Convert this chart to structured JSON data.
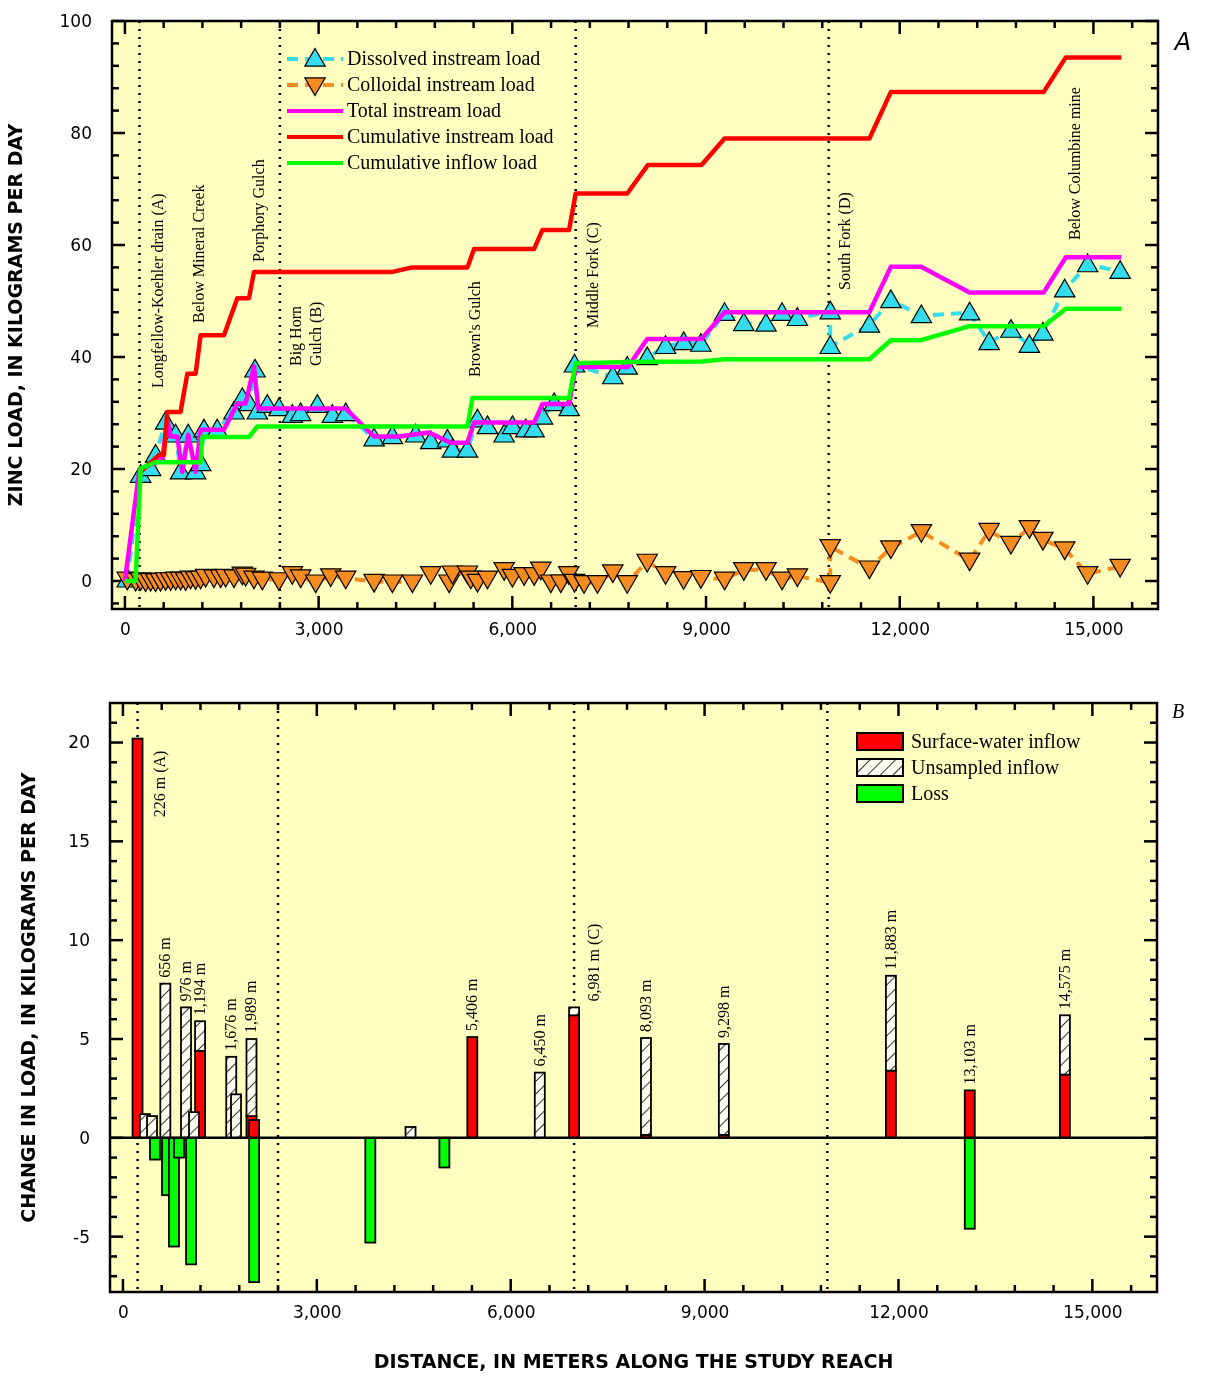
{
  "chart_data": [
    {
      "type": "line",
      "ylabel": "ZINC LOAD, IN KILOGRAMS PER DAY",
      "legend": "top left",
      "xlim": [
        -200,
        16000
      ],
      "ylim": [
        -5,
        100
      ],
      "xticks": [
        {
          "value": 0,
          "label": "0"
        },
        {
          "value": 600,
          "label": null
        },
        {
          "value": 1200,
          "label": null
        },
        {
          "value": 1800,
          "label": null
        },
        {
          "value": 2400,
          "label": null
        },
        {
          "value": 3000,
          "label": "3,000"
        },
        {
          "value": 3600,
          "label": null
        },
        {
          "value": 4200,
          "label": null
        },
        {
          "value": 4800,
          "label": null
        },
        {
          "value": 5400,
          "label": null
        },
        {
          "value": 6000,
          "label": "6,000"
        },
        {
          "value": 6600,
          "label": null
        },
        {
          "value": 7200,
          "label": null
        },
        {
          "value": 7800,
          "label": null
        },
        {
          "value": 8400,
          "label": null
        },
        {
          "value": 9000,
          "label": "9,000"
        },
        {
          "value": 9600,
          "label": null
        },
        {
          "value": 10200,
          "label": null
        },
        {
          "value": 10800,
          "label": null
        },
        {
          "value": 11400,
          "label": null
        },
        {
          "value": 12000,
          "label": "12,000"
        },
        {
          "value": 12600,
          "label": null
        },
        {
          "value": 13200,
          "label": null
        },
        {
          "value": 13800,
          "label": null
        },
        {
          "value": 14400,
          "label": null
        },
        {
          "value": 15000,
          "label": "15,000"
        },
        {
          "value": 15600,
          "label": null
        }
      ],
      "yticks": [
        {
          "value": -4,
          "label": null
        },
        0,
        {
          "value": 4,
          "label": null
        },
        {
          "value": 8,
          "label": null
        },
        {
          "value": 12,
          "label": null
        },
        {
          "value": 16,
          "label": null
        },
        20,
        {
          "value": 24,
          "label": null
        },
        {
          "value": 28,
          "label": null
        },
        {
          "value": 32,
          "label": null
        },
        {
          "value": 36,
          "label": null
        },
        40,
        {
          "value": 44,
          "label": null
        },
        {
          "value": 48,
          "label": null
        },
        {
          "value": 52,
          "label": null
        },
        {
          "value": 56,
          "label": null
        },
        60,
        {
          "value": 64,
          "label": null
        },
        {
          "value": 68,
          "label": null
        },
        {
          "value": 72,
          "label": null
        },
        {
          "value": 76,
          "label": null
        },
        80,
        {
          "value": 84,
          "label": null
        },
        {
          "value": 88,
          "label": null
        },
        {
          "value": 92,
          "label": null
        },
        {
          "value": 96,
          "label": null
        },
        100
      ],
      "ref_lines": [
        {
          "axis": "x",
          "value": 226,
          "line_style": "dotted",
          "color": "#000000"
        },
        {
          "axis": "x",
          "value": 2400,
          "line_style": "dotted",
          "color": "#000000"
        },
        {
          "axis": "x",
          "value": 6981,
          "line_style": "dotted",
          "color": "#000000"
        },
        {
          "axis": "x",
          "value": 10900,
          "line_style": "dotted",
          "color": "#000000"
        }
      ],
      "annotations": [
        "A",
        "Longfellow-Koehler drain (A)",
        "Below Mineral Creek",
        "Porphory Gulch",
        "Big Horn\nGulch (B)",
        "Brown's Gulch",
        "Middle Fork (C)",
        "South Fork (D)",
        "Below Columbine mine"
      ],
      "series": [
        {
          "name": "Dissolved instream load",
          "color": "#33ddee",
          "marker": "triangle",
          "line_style": "dashed",
          "x": [
            36,
            243,
            398,
            475,
            630,
            785,
            862,
            981,
            1095,
            1173,
            1224,
            1430,
            1689,
            1818,
            1922,
            2015,
            2051,
            2205,
            2386,
            2593,
            2722,
            2980,
            3213,
            3420,
            3859,
            4142,
            4504,
            4737,
            4995,
            5072,
            5305,
            5460,
            5615,
            5873,
            6002,
            6209,
            6338,
            6467,
            6648,
            6880,
            6963,
            7556,
            7780,
            8089,
            8374,
            8653,
            8920,
            9287,
            9585,
            9929,
            10177,
            10415,
            10924,
            10924,
            11530,
            11862,
            12335,
            13083,
            13385,
            13722,
            14008,
            14217,
            14555,
            14910,
            15414
          ],
          "values": [
            0.2,
            18.9,
            20.1,
            22.5,
            28.4,
            26.1,
            19.5,
            26.1,
            19.5,
            21,
            27,
            27,
            30.2,
            32.6,
            31.7,
            37.7,
            30.2,
            31.4,
            30.8,
            29.6,
            29.9,
            31.4,
            29.6,
            29.9,
            25.4,
            25.8,
            26.1,
            24.9,
            25.2,
            23.4,
            23.4,
            28.8,
            27.6,
            26.1,
            27.6,
            27,
            27,
            29.3,
            31.7,
            30.8,
            38.6,
            36.5,
            38.2,
            39.9,
            41.9,
            42.6,
            42.3,
            47.8,
            46,
            45.9,
            47.8,
            46.9,
            48.1,
            41.9,
            45.7,
            50.1,
            47.4,
            47.9,
            42.6,
            44.8,
            42.1,
            44.3,
            52,
            56.5,
            55.3
          ]
        },
        {
          "name": "Colloidal instream load",
          "color": "#f68b1f",
          "marker": "triangle-down",
          "line_style": "dashed",
          "x": [
            36,
            166,
            243,
            320,
            398,
            475,
            552,
            630,
            708,
            785,
            862,
            940,
            1017,
            1095,
            1173,
            1250,
            1378,
            1482,
            1560,
            1689,
            1818,
            1870,
            1999,
            2128,
            2386,
            2593,
            2722,
            2955,
            3187,
            3420,
            3859,
            4142,
            4452,
            4737,
            5021,
            5072,
            5305,
            5357,
            5460,
            5615,
            5873,
            6002,
            6183,
            6338,
            6441,
            6596,
            6751,
            6874,
            6963,
            7111,
            7319,
            7556,
            7780,
            8089,
            8374,
            8653,
            8920,
            9287,
            9585,
            9929,
            10177,
            10415,
            10924,
            10924,
            11530,
            11862,
            12335,
            13083,
            13385,
            13722,
            14008,
            14217,
            14555,
            14910,
            15414
          ],
          "values": [
            0.3,
            0.1,
            0.2,
            0,
            0.1,
            0,
            0.1,
            0.2,
            0.2,
            0.3,
            0.3,
            0.2,
            0.5,
            0.4,
            0.5,
            0.8,
            0.7,
            0.7,
            0.8,
            0.7,
            1.2,
            1,
            0.5,
            0.3,
            0.2,
            1.3,
            0.7,
            -0.2,
            0.9,
            0.5,
            -0.1,
            -0.2,
            -0.2,
            1.3,
            -0.2,
            1.4,
            1.4,
            0.5,
            -0.1,
            0.5,
            2,
            0.8,
            1.1,
            1.1,
            2.1,
            -0.2,
            -0.2,
            1.3,
            -0.1,
            -0.3,
            -0.3,
            1.6,
            -0.3,
            3.5,
            1.3,
            0.4,
            0.6,
            0.3,
            2,
            2,
            0.3,
            0.9,
            -0.3,
            6.1,
            2.3,
            5.9,
            8.8,
            3.7,
            9,
            6.7,
            9.5,
            7.4,
            5.7,
            1.3,
            2.6
          ]
        },
        {
          "name": "Total instream load",
          "color": "#ff00ff",
          "marker": "none",
          "line_style": "solid",
          "x": [
            0,
            226,
            578,
            656,
            708,
            811,
            888,
            981,
            1095,
            1173,
            1534,
            1741,
            1870,
            1999,
            2066,
            3420,
            3859,
            4246,
            4711,
            5047,
            5305,
            5408,
            6338,
            6467,
            6880,
            6981,
            7791,
            8089,
            8931,
            9287,
            11530,
            11862,
            12330,
            13083,
            14228,
            14572,
            15432
          ],
          "values": [
            0,
            20,
            21.6,
            28.8,
            25.8,
            25.8,
            19.5,
            26.1,
            19.5,
            27,
            27,
            31.7,
            31.7,
            38.3,
            30.8,
            30.8,
            25.8,
            25.8,
            26.5,
            24.7,
            24.7,
            28.3,
            28.3,
            31.6,
            31.6,
            38.2,
            38.2,
            43.2,
            43.2,
            48,
            48,
            56.1,
            56.1,
            51.5,
            51.5,
            57.8,
            57.8
          ]
        },
        {
          "name": "Cumulative instream load",
          "color": "#ff0000",
          "marker": "none",
          "line_style": "solid",
          "x": [
            226,
            527,
            604,
            656,
            862,
            966,
            1095,
            1173,
            1534,
            1741,
            1922,
            1999,
            4142,
            4452,
            5305,
            5408,
            6338,
            6467,
            6880,
            6981,
            7780,
            8101,
            8931,
            9287,
            11530,
            11862,
            14228,
            14572,
            15432
          ],
          "values": [
            19.3,
            22.5,
            22.5,
            30.2,
            30.2,
            37,
            37,
            43.9,
            43.9,
            50.5,
            50.5,
            55.2,
            55.2,
            56,
            56,
            59.3,
            59.3,
            62.7,
            62.7,
            69.2,
            69.2,
            74.3,
            74.3,
            79,
            79,
            87.3,
            87.3,
            93.5,
            93.5
          ]
        },
        {
          "name": "Cumulative inflow load",
          "color": "#00ff00",
          "marker": "none",
          "line_style": "solid",
          "x": [
            0,
            166,
            243,
            475,
            1173,
            1198,
            1922,
            2051,
            5305,
            5383,
            6880,
            6981,
            7791,
            8931,
            9287,
            11530,
            11862,
            12330,
            13083,
            14228,
            14572,
            15432
          ],
          "values": [
            0,
            0,
            20.1,
            21.2,
            21.2,
            25.7,
            25.7,
            27.6,
            27.6,
            32.7,
            32.7,
            38.9,
            39.1,
            39.2,
            39.6,
            39.6,
            43,
            43,
            45.5,
            45.5,
            48.6,
            48.6
          ]
        }
      ]
    },
    {
      "type": "bar",
      "stacked": true,
      "xlabel": "DISTANCE, IN METERS ALONG THE STUDY REACH",
      "ylabel": "CHANGE IN LOAD, IN KILOGRAMS PER DAY",
      "legend": "top right",
      "xlim": [
        -200,
        16000
      ],
      "ylim": [
        -7.8,
        22
      ],
      "xticks": [
        {
          "value": 0,
          "label": "0"
        },
        {
          "value": 600,
          "label": null
        },
        {
          "value": 1200,
          "label": null
        },
        {
          "value": 1800,
          "label": null
        },
        {
          "value": 2400,
          "label": null
        },
        {
          "value": 3000,
          "label": "3,000"
        },
        {
          "value": 3600,
          "label": null
        },
        {
          "value": 4200,
          "label": null
        },
        {
          "value": 4800,
          "label": null
        },
        {
          "value": 5400,
          "label": null
        },
        {
          "value": 6000,
          "label": "6,000"
        },
        {
          "value": 6600,
          "label": null
        },
        {
          "value": 7200,
          "label": null
        },
        {
          "value": 7800,
          "label": null
        },
        {
          "value": 8400,
          "label": null
        },
        {
          "value": 9000,
          "label": "9,000"
        },
        {
          "value": 9600,
          "label": null
        },
        {
          "value": 10200,
          "label": null
        },
        {
          "value": 10800,
          "label": null
        },
        {
          "value": 11400,
          "label": null
        },
        {
          "value": 12000,
          "label": "12,000"
        },
        {
          "value": 12600,
          "label": null
        },
        {
          "value": 13200,
          "label": null
        },
        {
          "value": 13800,
          "label": null
        },
        {
          "value": 14400,
          "label": null
        },
        {
          "value": 15000,
          "label": "15,000"
        },
        {
          "value": 15600,
          "label": null
        }
      ],
      "yticks": [
        {
          "value": -7,
          "label": null
        },
        {
          "value": -6,
          "label": null
        },
        -5,
        {
          "value": -4,
          "label": null
        },
        {
          "value": -3,
          "label": null
        },
        {
          "value": -2,
          "label": null
        },
        {
          "value": -1,
          "label": null
        },
        0,
        {
          "value": 1,
          "label": null
        },
        {
          "value": 2,
          "label": null
        },
        {
          "value": 3,
          "label": null
        },
        {
          "value": 4,
          "label": null
        },
        5,
        {
          "value": 6,
          "label": null
        },
        {
          "value": 7,
          "label": null
        },
        {
          "value": 8,
          "label": null
        },
        {
          "value": 9,
          "label": null
        },
        10,
        {
          "value": 11,
          "label": null
        },
        {
          "value": 12,
          "label": null
        },
        {
          "value": 13,
          "label": null
        },
        {
          "value": 14,
          "label": null
        },
        15,
        {
          "value": 16,
          "label": null
        },
        {
          "value": 17,
          "label": null
        },
        {
          "value": 18,
          "label": null
        },
        {
          "value": 19,
          "label": null
        },
        20,
        {
          "value": 21,
          "label": null
        }
      ],
      "ref_lines": [
        {
          "axis": "x",
          "value": 226,
          "line_style": "dotted",
          "color": "#000000"
        },
        {
          "axis": "x",
          "value": 2400,
          "line_style": "dotted",
          "color": "#000000"
        },
        {
          "axis": "x",
          "value": 6981,
          "line_style": "dotted",
          "color": "#000000"
        },
        {
          "axis": "x",
          "value": 10900,
          "line_style": "dotted",
          "color": "#000000"
        }
      ],
      "annotations": [
        "B",
        {
          "text": "226 m (A)",
          "x": 226,
          "y": 20.2
        },
        {
          "text": "656 m",
          "x": 656,
          "y": 7.8
        },
        {
          "text": "976 m",
          "x": 976,
          "y": 6.6
        },
        {
          "text": "1,194 m",
          "x": 1194,
          "y": 5.9
        },
        {
          "text": "1,676 m",
          "x": 1676,
          "y": 4.1
        },
        {
          "text": "1,989 m",
          "x": 1989,
          "y": 5.0
        },
        {
          "text": "5,406 m",
          "x": 5406,
          "y": 5.1
        },
        {
          "text": "6,450 m",
          "x": 6450,
          "y": 3.3
        },
        {
          "text": "6,981 m (C)",
          "x": 6981,
          "y": 6.6
        },
        {
          "text": "8,093 m",
          "x": 8093,
          "y": 5.05
        },
        {
          "text": "9,298 m",
          "x": 9298,
          "y": 4.75
        },
        {
          "text": "11,883 m",
          "x": 11883,
          "y": 8.2
        },
        {
          "text": "13,103 m",
          "x": 13103,
          "y": 2.4
        },
        {
          "text": "14,575 m",
          "x": 14575,
          "y": 6.2
        }
      ],
      "x": [
        226,
        340,
        450,
        496,
        656,
        682,
        790,
        868,
        976,
        1054,
        1100,
        1194,
        1676,
        1750,
        1989,
        2030,
        3828,
        4450,
        4974,
        5406,
        6450,
        6981,
        8093,
        9298,
        11883,
        13103,
        14575
      ],
      "series": [
        {
          "name": "Surface-water inflow",
          "color": "#ff0000",
          "values": [
            20.2,
            null,
            null,
            null,
            null,
            null,
            null,
            null,
            null,
            null,
            null,
            4.4,
            null,
            null,
            1.1,
            0.9,
            null,
            null,
            null,
            5.1,
            null,
            6.2,
            0.15,
            0.15,
            3.4,
            2.4,
            3.2
          ]
        },
        {
          "name": "Unsampled inflow",
          "color": "#000000",
          "values": [
            null,
            1.2,
            1.1,
            null,
            7.8,
            null,
            null,
            null,
            6.6,
            null,
            1.3,
            1.5,
            4.1,
            2.2,
            3.9,
            null,
            null,
            0.55,
            null,
            null,
            3.3,
            0.4,
            4.9,
            4.6,
            4.8,
            null,
            3.0
          ]
        },
        {
          "name": "Loss",
          "color": "#00ff00",
          "values": [
            null,
            null,
            null,
            -1.1,
            null,
            -2.9,
            -5.5,
            -1.0,
            null,
            -6.4,
            null,
            null,
            null,
            null,
            null,
            -7.3,
            -5.3,
            null,
            -1.5,
            null,
            null,
            null,
            null,
            null,
            null,
            -4.6,
            null
          ]
        }
      ]
    }
  ]
}
